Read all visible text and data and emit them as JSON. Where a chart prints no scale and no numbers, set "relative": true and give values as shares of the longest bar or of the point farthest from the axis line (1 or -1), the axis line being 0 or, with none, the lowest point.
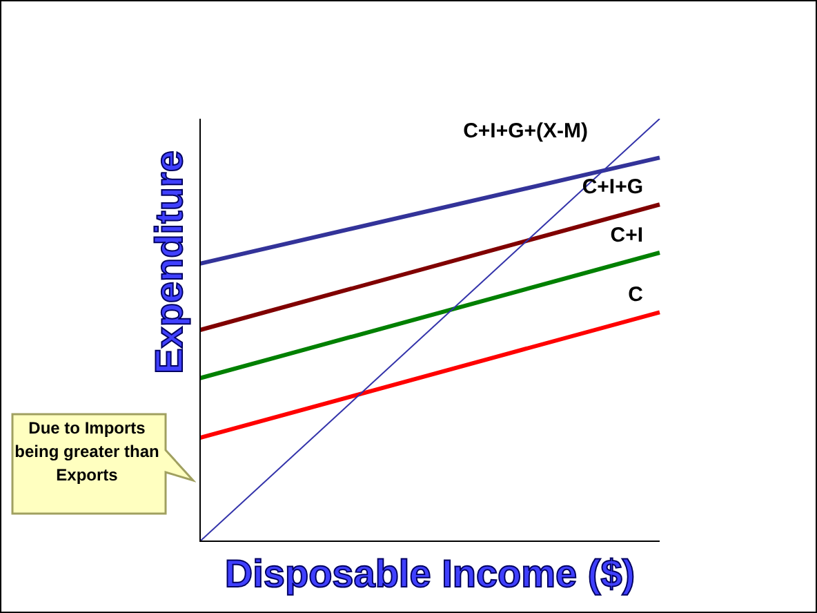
{
  "chart_data": {
    "type": "line",
    "relative": true,
    "xlabel": "Disposable Income ($)",
    "ylabel": "Expenditure",
    "categories": [
      null,
      null
    ],
    "series": [
      {
        "color": "#3333aa",
        "values": [
          0,
          1
        ]
      },
      {
        "name": "C+I+G+(X-M)",
        "color": "#333399",
        "values": [
          0.657,
          0.908
        ]
      },
      {
        "name": "C+I+G",
        "color": "#800000",
        "values": [
          0.5,
          0.797
        ]
      },
      {
        "name": "C+I",
        "color": "#008000",
        "values": [
          0.386,
          0.683
        ]
      },
      {
        "name": "C",
        "color": "#ff0000",
        "values": [
          0.245,
          0.542
        ]
      }
    ],
    "annotations": [
      "Due to Imports being greater than Exports"
    ]
  }
}
